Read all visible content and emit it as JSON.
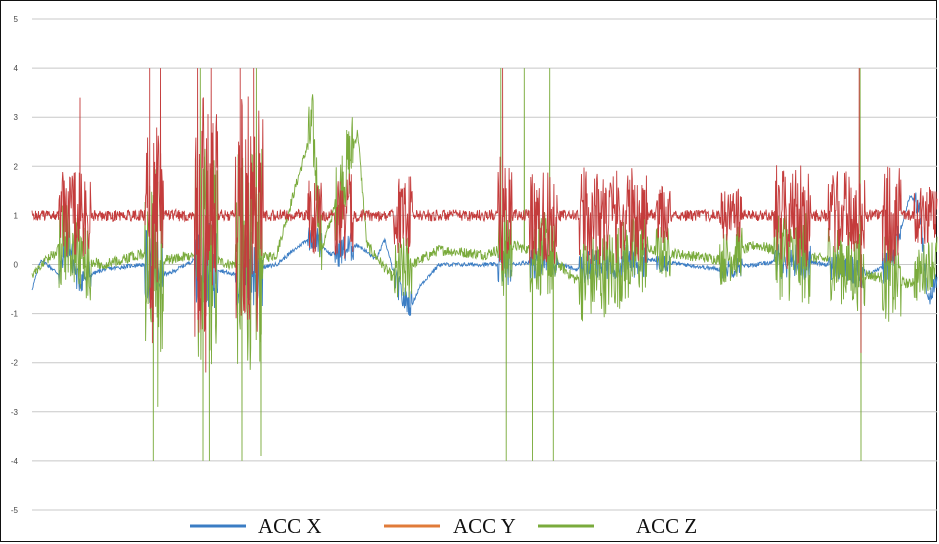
{
  "chart_data": {
    "type": "line",
    "title": "",
    "xlabel": "",
    "ylabel": "",
    "ylim": [
      -5,
      5
    ],
    "yticks": [
      "5",
      "4",
      "3",
      "2",
      "1",
      "0",
      "-1",
      "-2",
      "-3",
      "-4",
      "-5"
    ],
    "grid": true,
    "legend_position": "bottom",
    "x_range": [
      0,
      100
    ],
    "series": [
      {
        "name": "ACC X",
        "color": "#3b7dc4",
        "baseline": 0.0,
        "points": [
          [
            0,
            -0.5
          ],
          [
            1,
            0.1
          ],
          [
            3,
            -0.2
          ],
          [
            4,
            0.5
          ],
          [
            5,
            -0.3
          ],
          [
            8,
            -0.1
          ],
          [
            12,
            0.0
          ],
          [
            15,
            -0.2
          ],
          [
            18,
            0.1
          ],
          [
            22,
            -0.2
          ],
          [
            27,
            0.0
          ],
          [
            31,
            0.6
          ],
          [
            33,
            0.2
          ],
          [
            36,
            0.4
          ],
          [
            38,
            0.1
          ],
          [
            39,
            0.5
          ],
          [
            40,
            -0.2
          ],
          [
            41,
            -0.7
          ],
          [
            42,
            -0.8
          ],
          [
            43,
            -0.4
          ],
          [
            45,
            0.0
          ],
          [
            50,
            0.0
          ],
          [
            53,
            0.0
          ],
          [
            57,
            0.1
          ],
          [
            60,
            -0.1
          ],
          [
            63,
            0.0
          ],
          [
            68,
            0.1
          ],
          [
            72,
            0.0
          ],
          [
            76,
            -0.1
          ],
          [
            80,
            0.0
          ],
          [
            84,
            0.1
          ],
          [
            88,
            0.0
          ],
          [
            92,
            -0.2
          ],
          [
            95,
            0.0
          ],
          [
            97,
            1.4
          ],
          [
            98,
            1.2
          ],
          [
            99,
            -0.7
          ],
          [
            100,
            -0.3
          ]
        ]
      },
      {
        "name": "ACC Y",
        "color": "#e07b39",
        "baseline": 1.0,
        "points": [
          [
            0,
            1.0
          ],
          [
            100,
            1.0
          ]
        ]
      },
      {
        "name": "ACC Z",
        "color": "#7aab3c",
        "baseline": 0.1,
        "points": [
          [
            0,
            -0.2
          ],
          [
            4,
            0.5
          ],
          [
            5,
            0.1
          ],
          [
            8,
            0.0
          ],
          [
            12,
            0.2
          ],
          [
            15,
            0.1
          ],
          [
            18,
            0.2
          ],
          [
            22,
            0.0
          ],
          [
            27,
            0.2
          ],
          [
            31,
            2.8
          ],
          [
            32,
            0.3
          ],
          [
            36,
            2.7
          ],
          [
            37,
            0.4
          ],
          [
            40,
            -0.3
          ],
          [
            42,
            0.0
          ],
          [
            45,
            0.3
          ],
          [
            50,
            0.2
          ],
          [
            53,
            0.4
          ],
          [
            57,
            0.2
          ],
          [
            60,
            -0.3
          ],
          [
            63,
            -0.2
          ],
          [
            68,
            0.3
          ],
          [
            72,
            0.2
          ],
          [
            76,
            0.1
          ],
          [
            80,
            0.4
          ],
          [
            84,
            0.2
          ],
          [
            88,
            0.1
          ],
          [
            92,
            -0.2
          ],
          [
            95,
            -0.3
          ],
          [
            97,
            -0.4
          ],
          [
            99,
            0.0
          ],
          [
            100,
            0.1
          ]
        ]
      },
      {
        "name": "",
        "color": "#c43c3c",
        "baseline": 1.0,
        "points": [
          [
            0,
            1.0
          ],
          [
            100,
            1.0
          ]
        ]
      }
    ],
    "annotations": []
  },
  "legend": {
    "items": [
      {
        "label": "ACC X",
        "color": "#3b7dc4"
      },
      {
        "label": "ACC Y",
        "color": "#e07b39"
      },
      {
        "label": "",
        "color": "#7aab3c"
      },
      {
        "label": "ACC Z",
        "color": ""
      }
    ]
  }
}
